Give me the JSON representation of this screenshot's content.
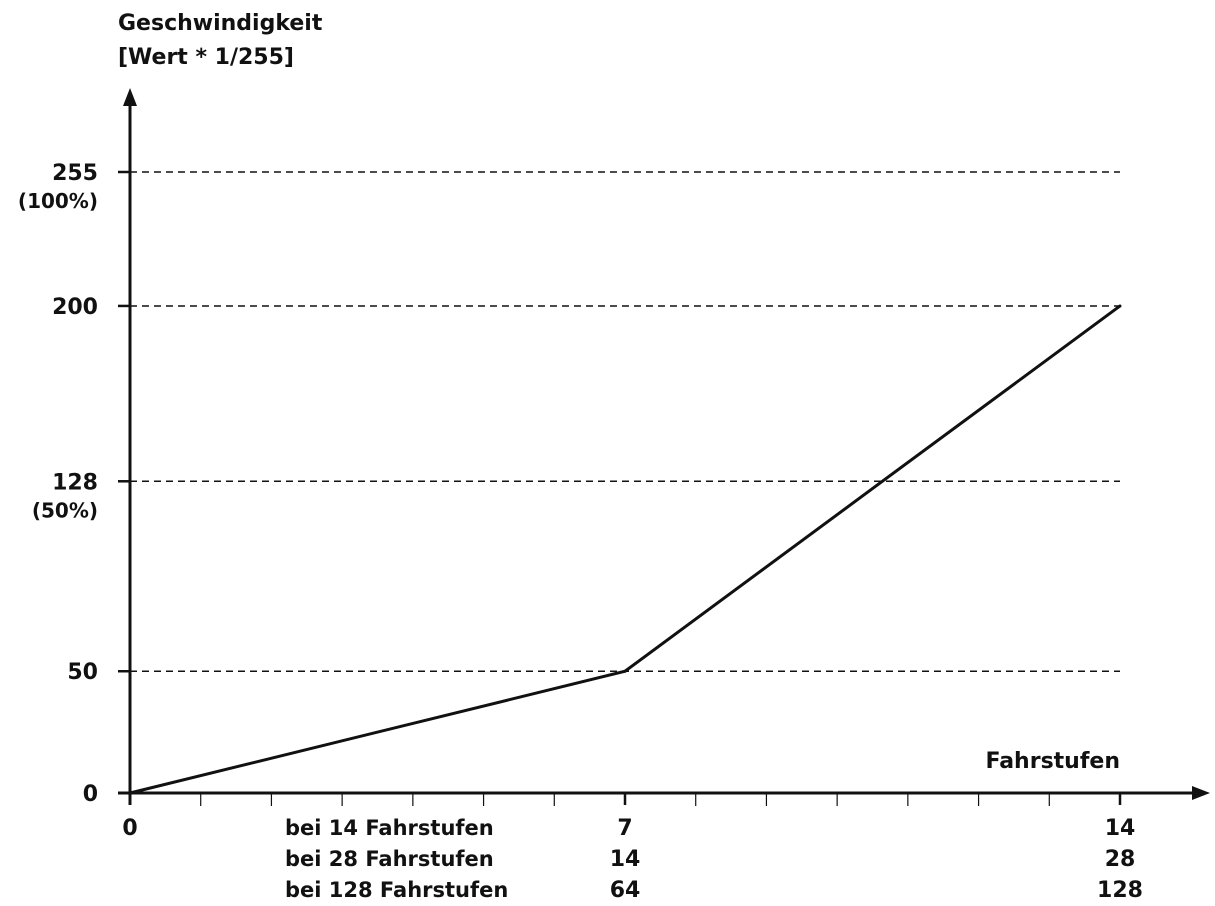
{
  "chart_data": {
    "type": "line",
    "title": "",
    "ylabel": [
      "Geschwindigkeit",
      "[Wert * 1/255]"
    ],
    "xlabel": "Fahrstufen",
    "x_origin_label": "0",
    "y_ticks": [
      {
        "value": 0,
        "label": "0",
        "sub": ""
      },
      {
        "value": 50,
        "label": "50",
        "sub": ""
      },
      {
        "value": 128,
        "label": "128",
        "sub": "(50%)"
      },
      {
        "value": 200,
        "label": "200",
        "sub": ""
      },
      {
        "value": 255,
        "label": "255",
        "sub": "(100%)"
      }
    ],
    "gridlines": [
      50,
      128,
      200,
      255
    ],
    "ylim": [
      0,
      255
    ],
    "xlim": [
      0,
      14
    ],
    "x_minor_ticks": 14,
    "series": [
      {
        "x": [
          0,
          7,
          14
        ],
        "y": [
          0,
          50,
          200
        ]
      }
    ],
    "x_scale_rows": [
      {
        "caption": "bei 14 Fahrstufen",
        "mid": "7",
        "end": "14"
      },
      {
        "caption": "bei 28 Fahrstufen",
        "mid": "14",
        "end": "28"
      },
      {
        "caption": "bei 128 Fahrstufen",
        "mid": "64",
        "end": "128"
      }
    ],
    "x_scale_positions": [
      7,
      14
    ]
  },
  "colors": {
    "ink": "#111111",
    "background": "#ffffff"
  }
}
